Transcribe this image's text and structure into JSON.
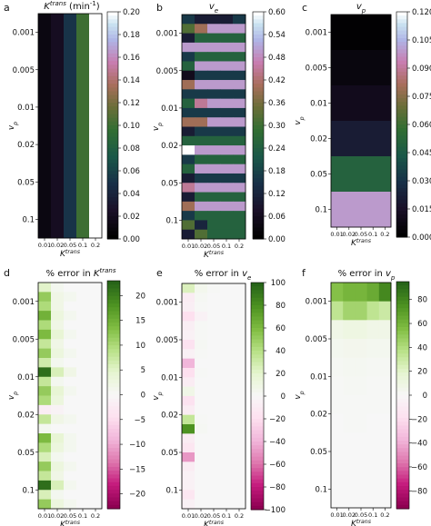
{
  "chart_data": [
    {
      "letter": "a",
      "type": "heatmap",
      "title": "K^trans (min^-1)",
      "title_main": "K",
      "title_sup": "trans",
      "title_suffix": " (min",
      "title_sup2": "-1",
      "title_end": ")",
      "xlabel_main": "K",
      "xlabel_sup": "trans",
      "ylabel_main": "v",
      "ylabel_sub": "p",
      "xticks": [
        "0.01",
        "0.02",
        "0.05",
        "0.1",
        "0.2"
      ],
      "yticks": [
        "0.001",
        "0.005",
        "0.01",
        "0.02",
        "0.05",
        "0.1"
      ],
      "cmap": "cubehelix",
      "vmin": 0,
      "vmax": 0.2,
      "cbar_ticks": [
        "0.00",
        "0.02",
        "0.04",
        "0.06",
        "0.08",
        "0.10",
        "0.12",
        "0.14",
        "0.16",
        "0.18",
        "0.20"
      ],
      "values": [
        [
          0.01,
          0.02,
          0.05,
          0.1,
          0.2
        ]
      ]
    },
    {
      "letter": "b",
      "type": "heatmap",
      "title_main": "v",
      "title_sub": "e",
      "xlabel_main": "K",
      "xlabel_sup": "trans",
      "ylabel_main": "v",
      "ylabel_sub": "p",
      "xticks": [
        "0.01",
        "0.02",
        "0.05",
        "0.1",
        "0.2"
      ],
      "yticks": [
        "0.001",
        "0.005",
        "0.01",
        "0.02",
        "0.05",
        "0.1"
      ],
      "cmap": "cubehelix",
      "vmin": 0,
      "vmax": 0.6,
      "cbar_ticks": [
        "0.00",
        "0.06",
        "0.12",
        "0.18",
        "0.24",
        "0.30",
        "0.36",
        "0.42",
        "0.48",
        "0.54",
        "0.60"
      ],
      "values": [
        [
          0.16,
          0.1,
          0.1,
          0.1,
          0.16
        ],
        [
          0.32,
          0.4,
          0.5,
          0.5,
          0.5
        ],
        [
          0.1,
          0.25,
          0.25,
          0.25,
          0.25
        ],
        [
          0.5,
          0.5,
          0.5,
          0.5,
          0.5
        ],
        [
          0.16,
          0.25,
          0.25,
          0.25,
          0.25
        ],
        [
          0.25,
          0.5,
          0.5,
          0.5,
          0.5
        ],
        [
          0.05,
          0.16,
          0.16,
          0.16,
          0.16
        ],
        [
          0.4,
          0.5,
          0.5,
          0.5,
          0.5
        ],
        [
          0.16,
          0.16,
          0.16,
          0.16,
          0.16
        ],
        [
          0.25,
          0.45,
          0.5,
          0.5,
          0.5
        ],
        [
          0.16,
          0.16,
          0.16,
          0.16,
          0.16
        ],
        [
          0.4,
          0.4,
          0.5,
          0.5,
          0.5
        ],
        [
          0.1,
          0.16,
          0.16,
          0.16,
          0.16
        ],
        [
          0.25,
          0.25,
          0.25,
          0.25,
          0.25
        ],
        [
          0.6,
          0.5,
          0.5,
          0.5,
          0.5
        ],
        [
          0.16,
          0.25,
          0.25,
          0.25,
          0.25
        ],
        [
          0.25,
          0.5,
          0.5,
          0.5,
          0.5
        ],
        [
          0.1,
          0.16,
          0.16,
          0.16,
          0.16
        ],
        [
          0.45,
          0.5,
          0.5,
          0.5,
          0.5
        ],
        [
          0.1,
          0.25,
          0.25,
          0.25,
          0.25
        ],
        [
          0.4,
          0.5,
          0.5,
          0.5,
          0.5
        ],
        [
          0.16,
          0.25,
          0.25,
          0.25,
          0.25
        ],
        [
          0.32,
          0.12,
          0.25,
          0.25,
          0.25
        ],
        [
          0.1,
          0.32,
          0.25,
          0.25,
          0.25
        ]
      ]
    },
    {
      "letter": "c",
      "type": "heatmap",
      "title_main": "v",
      "title_sub": "p",
      "xlabel_main": "K",
      "xlabel_sup": "trans",
      "ylabel_main": "v",
      "ylabel_sub": "p",
      "xticks": [
        "0.01",
        "0.02",
        "0.05",
        "0.1",
        "0.2"
      ],
      "yticks": [
        "0.001",
        "0.005",
        "0.01",
        "0.02",
        "0.05",
        "0.1"
      ],
      "cmap": "cubehelix",
      "vmin": 0,
      "vmax": 0.12,
      "cbar_ticks": [
        "0.000",
        "0.015",
        "0.030",
        "0.045",
        "0.060",
        "0.075",
        "0.090",
        "0.105",
        "0.120"
      ],
      "values": [
        [
          0.001
        ],
        [
          0.005
        ],
        [
          0.01
        ],
        [
          0.02
        ],
        [
          0.05
        ],
        [
          0.1
        ]
      ]
    },
    {
      "letter": "d",
      "type": "heatmap",
      "title_main": "% error in K",
      "title_sup": "trans",
      "xlabel_main": "K",
      "xlabel_sup": "trans",
      "ylabel_main": "v",
      "ylabel_sub": "p",
      "xticks": [
        "0.01",
        "0.02",
        "0.05",
        "0.1",
        "0.2"
      ],
      "yticks": [
        "0.001",
        "0.005",
        "0.01",
        "0.02",
        "0.05",
        "0.1"
      ],
      "cmap": "PiYG",
      "vmin": -23,
      "vmax": 23,
      "cbar_ticks": [
        "20",
        "15",
        "10",
        "5",
        "0",
        "−5",
        "−10",
        "−15",
        "−20"
      ],
      "cbar_values": [
        20,
        15,
        10,
        5,
        0,
        -5,
        -10,
        -15,
        -20
      ],
      "values": [
        [
          5,
          1,
          0,
          0,
          0
        ],
        [
          12,
          2,
          1,
          0,
          0
        ],
        [
          10,
          2,
          0,
          0,
          0
        ],
        [
          15,
          3,
          1,
          0,
          0
        ],
        [
          10,
          2,
          0,
          0,
          0
        ],
        [
          14,
          4,
          1,
          0,
          0
        ],
        [
          8,
          2,
          0,
          0,
          0
        ],
        [
          12,
          3,
          1,
          0,
          0
        ],
        [
          7,
          1,
          0,
          0,
          0
        ],
        [
          22,
          6,
          2,
          0,
          0
        ],
        [
          8,
          1,
          0,
          0,
          0
        ],
        [
          12,
          4,
          1,
          0,
          0
        ],
        [
          10,
          3,
          0,
          0,
          0
        ],
        [
          -2,
          -1,
          0,
          0,
          0
        ],
        [
          8,
          2,
          1,
          0,
          0
        ],
        [
          1,
          0,
          0,
          0,
          0
        ],
        [
          14,
          4,
          1,
          0,
          0
        ],
        [
          10,
          3,
          1,
          0,
          0
        ],
        [
          6,
          1,
          0,
          0,
          0
        ],
        [
          12,
          3,
          1,
          0,
          0
        ],
        [
          8,
          2,
          0,
          0,
          0
        ],
        [
          22,
          6,
          1,
          0,
          0
        ],
        [
          6,
          1,
          0,
          0,
          0
        ],
        [
          12,
          3,
          1,
          0,
          0
        ]
      ]
    },
    {
      "letter": "e",
      "type": "heatmap",
      "title_main": "% error in v",
      "title_sub": "e",
      "xlabel_main": "K",
      "xlabel_sup": "trans",
      "ylabel_main": "v",
      "ylabel_sub": "p",
      "xticks": [
        "0.01",
        "0.02",
        "0.05",
        "0.1",
        "0.2"
      ],
      "yticks": [
        "0.001",
        "0.005",
        "0.01",
        "0.02",
        "0.05",
        "0.1"
      ],
      "cmap": "PiYG",
      "vmin": -100,
      "vmax": 100,
      "cbar_ticks": [
        "100",
        "80",
        "60",
        "40",
        "20",
        "0",
        "−20",
        "−40",
        "−60",
        "−80",
        "−100"
      ],
      "cbar_values": [
        100,
        80,
        60,
        40,
        20,
        0,
        -20,
        -40,
        -60,
        -80,
        -100
      ],
      "values": [
        [
          25,
          5,
          1,
          0,
          0
        ],
        [
          -10,
          2,
          0,
          0,
          0
        ],
        [
          -8,
          1,
          0,
          0,
          0
        ],
        [
          -20,
          -5,
          0,
          0,
          0
        ],
        [
          -8,
          1,
          0,
          0,
          0
        ],
        [
          -5,
          1,
          0,
          0,
          0
        ],
        [
          -18,
          2,
          0,
          0,
          0
        ],
        [
          -5,
          1,
          0,
          0,
          0
        ],
        [
          -40,
          0,
          0,
          0,
          0
        ],
        [
          -20,
          1,
          0,
          0,
          0
        ],
        [
          -10,
          0,
          0,
          0,
          0
        ],
        [
          8,
          0,
          0,
          0,
          0
        ],
        [
          -18,
          0,
          0,
          0,
          0
        ],
        [
          -10,
          0,
          0,
          0,
          0
        ],
        [
          35,
          1,
          0,
          0,
          0
        ],
        [
          80,
          2,
          0,
          0,
          0
        ],
        [
          -10,
          0,
          0,
          0,
          0
        ],
        [
          -15,
          0,
          0,
          0,
          0
        ],
        [
          -50,
          0,
          0,
          0,
          0
        ],
        [
          -10,
          0,
          0,
          0,
          0
        ],
        [
          -5,
          0,
          0,
          0,
          0
        ],
        [
          -5,
          0,
          0,
          0,
          0
        ],
        [
          -15,
          0,
          0,
          0,
          0
        ],
        [
          -5,
          0,
          0,
          0,
          0
        ]
      ]
    },
    {
      "letter": "f",
      "type": "heatmap",
      "title_main": "% error in v",
      "title_sub": "p",
      "xlabel_main": "K",
      "xlabel_sup": "trans",
      "ylabel_main": "v",
      "ylabel_sub": "p",
      "xticks": [
        "0.01",
        "0.02",
        "0.05",
        "0.1",
        "0.2"
      ],
      "yticks": [
        "0.001",
        "0.005",
        "0.01",
        "0.02",
        "0.05",
        "0.1"
      ],
      "cmap": "PiYG",
      "vmin": -95,
      "vmax": 95,
      "cbar_ticks": [
        "80",
        "60",
        "40",
        "20",
        "0",
        "−20",
        "−40",
        "−60",
        "−80"
      ],
      "cbar_values": [
        80,
        60,
        40,
        20,
        0,
        -20,
        -40,
        -60,
        -80
      ],
      "values": [
        [
          55,
          60,
          60,
          65,
          80
        ],
        [
          35,
          45,
          45,
          35,
          30
        ],
        [
          8,
          10,
          10,
          8,
          8
        ],
        [
          4,
          5,
          5,
          4,
          4
        ],
        [
          2,
          3,
          3,
          2,
          2
        ],
        [
          1,
          2,
          2,
          1,
          1
        ],
        [
          1,
          1,
          1,
          1,
          1
        ],
        [
          0,
          1,
          1,
          0,
          0
        ],
        [
          0,
          0,
          0,
          0,
          0
        ],
        [
          0,
          0,
          0,
          0,
          0
        ],
        [
          0,
          0,
          0,
          0,
          0
        ],
        [
          0,
          0,
          0,
          0,
          0
        ]
      ]
    }
  ]
}
